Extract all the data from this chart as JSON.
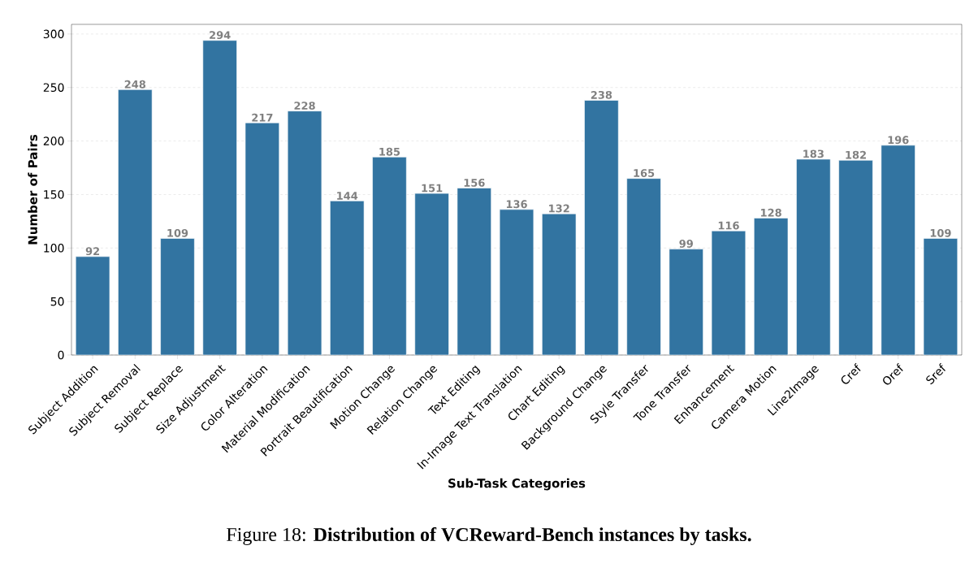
{
  "chart_data": {
    "type": "bar",
    "categories": [
      "Subject Addition",
      "Subject Removal",
      "Subject Replace",
      "Size Adjustment",
      "Color Alteration",
      "Material Modification",
      "Portrait Beautification",
      "Motion Change",
      "Relation Change",
      "Text Editing",
      "In-Image Text Translation",
      "Chart Editing",
      "Background Change",
      "Style Transfer",
      "Tone Transfer",
      "Enhancement",
      "Camera Motion",
      "Line2Image",
      "Cref",
      "Oref",
      "Sref"
    ],
    "values": [
      92,
      248,
      109,
      294,
      217,
      228,
      144,
      185,
      151,
      156,
      136,
      132,
      238,
      165,
      99,
      116,
      128,
      183,
      182,
      196,
      109
    ],
    "color": "#3274a1",
    "xlabel": "Sub-Task Categories",
    "ylabel": "Number of Pairs",
    "ylim": [
      0,
      309
    ],
    "yticks": [
      0,
      50,
      100,
      150,
      200,
      250,
      300
    ],
    "grid": "y",
    "data_labels": true,
    "annotations": [
      "Figure 18: **Distribution of VCReward-Bench instances by tasks.**"
    ]
  }
}
